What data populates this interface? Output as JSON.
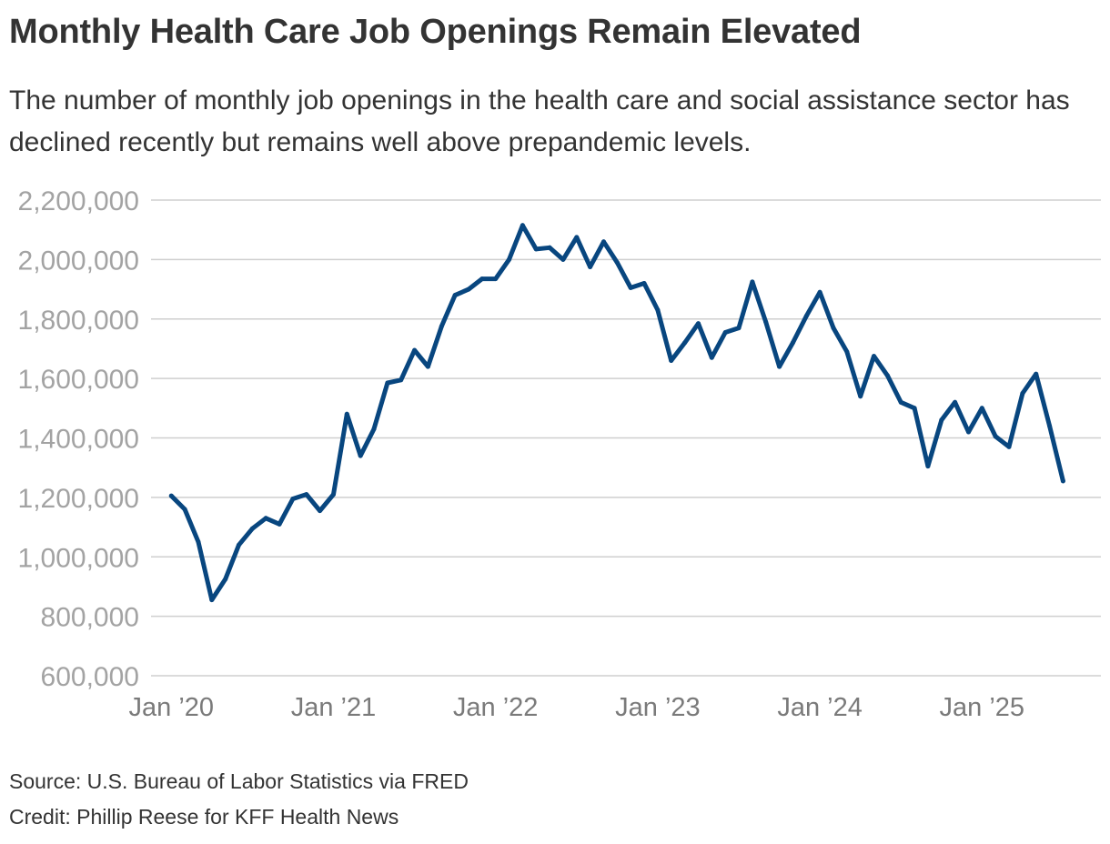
{
  "header": {
    "title": "Monthly Health Care Job Openings Remain Elevated",
    "subtitle": "The number of monthly job openings in the health care and social assistance sector has declined recently but remains well above prepandemic levels."
  },
  "footer": {
    "source": "Source: U.S. Bureau of Labor Statistics via FRED",
    "credit": "Credit: Phillip Reese for KFF Health News"
  },
  "colors": {
    "line": "#08467f",
    "grid": "#cfcfcf",
    "ytick": "#a3a3a3",
    "xtick": "#7a7a7a"
  },
  "chart_data": {
    "type": "line",
    "title": "Monthly Health Care Job Openings Remain Elevated",
    "xlabel": "",
    "ylabel": "",
    "grid": true,
    "ylim": [
      600000,
      2200000
    ],
    "xlim": [
      -1.5,
      68.8
    ],
    "yticks": [
      {
        "value": 600000,
        "label": "600,000"
      },
      {
        "value": 800000,
        "label": "800,000"
      },
      {
        "value": 1000000,
        "label": "1,000,000"
      },
      {
        "value": 1200000,
        "label": "1,200,000"
      },
      {
        "value": 1400000,
        "label": "1,400,000"
      },
      {
        "value": 1600000,
        "label": "1,600,000"
      },
      {
        "value": 1800000,
        "label": "1,800,000"
      },
      {
        "value": 2000000,
        "label": "2,000,000"
      },
      {
        "value": 2200000,
        "label": "2,200,000"
      }
    ],
    "xticks": [
      {
        "index": 0,
        "label": "Jan ’20"
      },
      {
        "index": 12,
        "label": "Jan ’21"
      },
      {
        "index": 24,
        "label": "Jan ’22"
      },
      {
        "index": 36,
        "label": "Jan ’23"
      },
      {
        "index": 48,
        "label": "Jan ’24"
      },
      {
        "index": 60,
        "label": "Jan ’25"
      }
    ],
    "series": [
      {
        "name": "Health care and social assistance job openings",
        "start": "Jan 2020",
        "frequency": "monthly",
        "values": [
          1205000,
          1160000,
          1050000,
          855000,
          925000,
          1040000,
          1095000,
          1130000,
          1110000,
          1195000,
          1210000,
          1155000,
          1210000,
          1480000,
          1340000,
          1430000,
          1585000,
          1595000,
          1695000,
          1640000,
          1775000,
          1880000,
          1900000,
          1935000,
          1935000,
          2000000,
          2115000,
          2035000,
          2040000,
          2000000,
          2075000,
          1975000,
          2060000,
          1990000,
          1905000,
          1920000,
          1830000,
          1660000,
          1720000,
          1785000,
          1670000,
          1755000,
          1770000,
          1925000,
          1790000,
          1640000,
          1720000,
          1810000,
          1890000,
          1770000,
          1690000,
          1540000,
          1675000,
          1610000,
          1520000,
          1500000,
          1305000,
          1460000,
          1520000,
          1420000,
          1500000,
          1405000,
          1370000,
          1550000,
          1615000,
          1440000,
          1255000
        ]
      }
    ]
  }
}
